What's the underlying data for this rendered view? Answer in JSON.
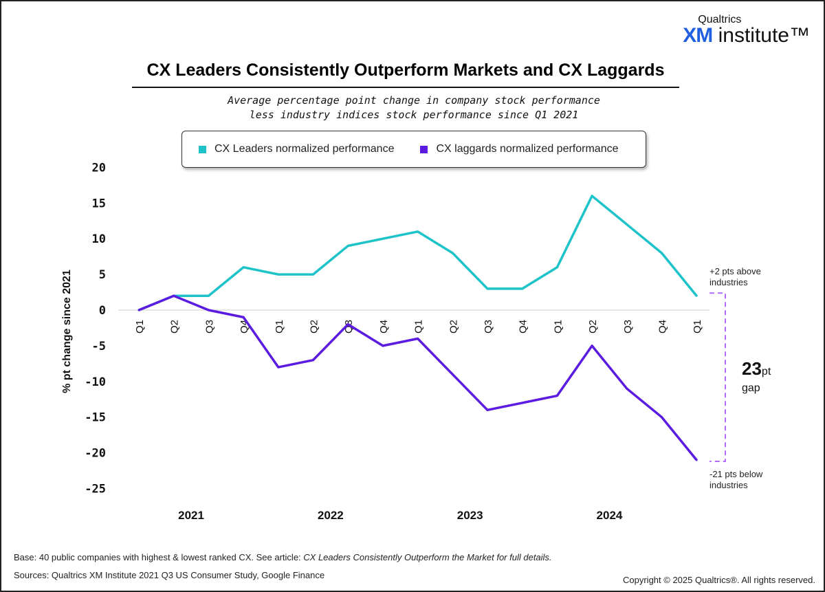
{
  "logo": {
    "line1": "Qualtrics",
    "line2_bold": "XM",
    "line2": " institute™"
  },
  "title": "CX Leaders Consistently Outperform Markets and CX Laggards",
  "subtitle": [
    "Average percentage point change in company stock performance",
    "less industry indices stock performance since Q1 2021"
  ],
  "chart_data": {
    "type": "line",
    "title": "CX Leaders Consistently Outperform Markets and CX Laggards",
    "ylabel": "% pt change since 2021",
    "xlabel": "",
    "ylim": [
      -25,
      20
    ],
    "yticks": [
      20,
      15,
      10,
      5,
      0,
      -5,
      -10,
      -15,
      -20,
      -25
    ],
    "categories": [
      "Q1",
      "Q2",
      "Q3",
      "Q4",
      "Q1",
      "Q2",
      "Q3",
      "Q4",
      "Q1",
      "Q2",
      "Q3",
      "Q4",
      "Q1",
      "Q2",
      "Q3",
      "Q4",
      "Q1"
    ],
    "year_labels": [
      "2021",
      "2022",
      "2023",
      "2024"
    ],
    "grid": false,
    "legend": "top",
    "series": [
      {
        "name": "CX Leaders normalized performance",
        "color": "#1ec3c9",
        "values": [
          0,
          2,
          2,
          6,
          5,
          5,
          9,
          10,
          11,
          8,
          3,
          3,
          6,
          16,
          12,
          8,
          2
        ]
      },
      {
        "name": "CX laggards normalized performance",
        "color": "#5b1be0",
        "values": [
          0,
          2,
          0,
          -1,
          -8,
          -7,
          -2,
          -5,
          -4,
          -9,
          -14,
          -13,
          -12,
          -5,
          -11,
          -15,
          -21
        ]
      }
    ],
    "annotations": {
      "top": [
        "+2 pts above",
        "industries"
      ],
      "bottom": [
        "-21 pts below",
        "industries"
      ],
      "gap_value": "23",
      "gap_unit": "pt",
      "gap_word": "gap"
    }
  },
  "footer": {
    "base": "Base: 40 public companies with highest & lowest ranked CX. See article: ",
    "base_italic": "CX Leaders Consistently Outperform the Market for full details.",
    "sources": "Sources: Qualtrics XM Institute 2021 Q3 US Consumer Study, Google Finance",
    "copyright": "Copyright © 2025 Qualtrics®. All rights reserved."
  }
}
